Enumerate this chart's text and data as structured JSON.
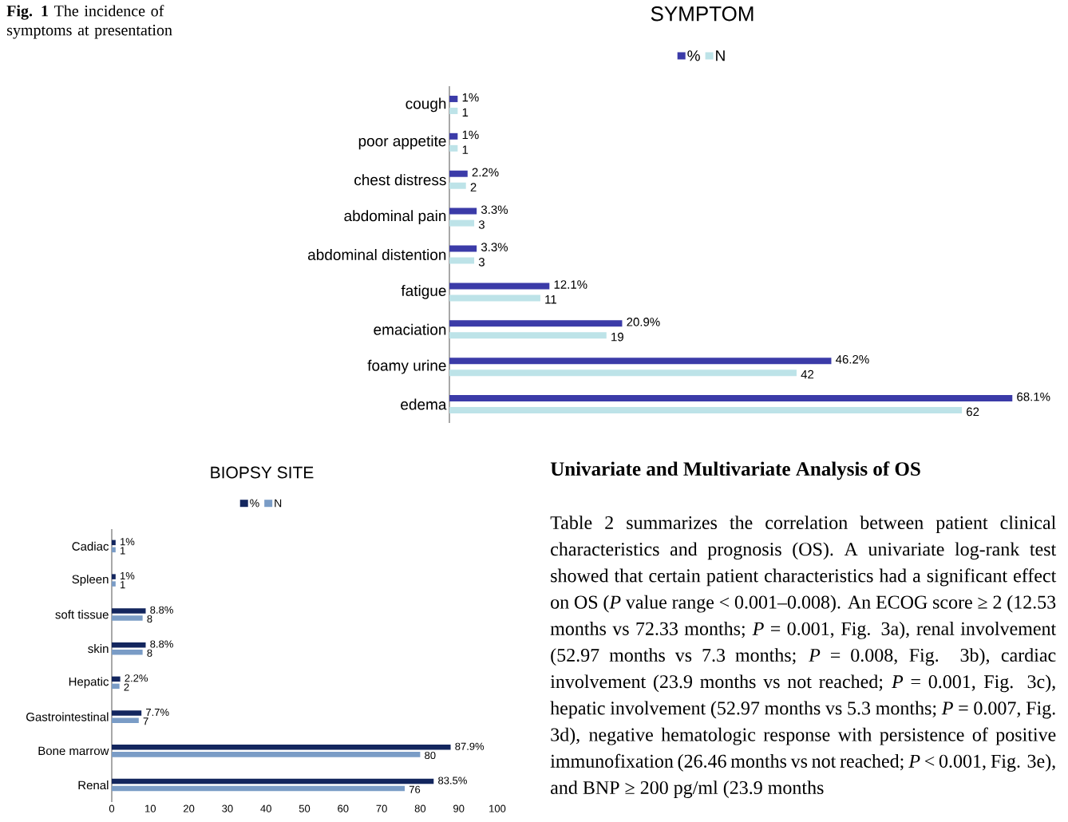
{
  "chart_data": [
    {
      "type": "bar",
      "orientation": "horizontal",
      "title": "SYMPTOM",
      "legend": "top",
      "categories": [
        "cough",
        "poor appetite",
        "chest distress",
        "abdominal pain",
        "abdominal distention",
        "fatigue",
        "emaciation",
        "foamy urine",
        "edema"
      ],
      "series": [
        {
          "name": "%",
          "color": "#3b3ba8",
          "values": [
            1,
            1,
            2.2,
            3.3,
            3.3,
            12.1,
            20.9,
            46.2,
            68.1
          ],
          "value_labels": [
            "1%",
            "1%",
            "2.2%",
            "3.3%",
            "3.3%",
            "12.1%",
            "20.9%",
            "46.2%",
            "68.1%"
          ]
        },
        {
          "name": "N",
          "color": "#bde3e8",
          "values": [
            1,
            1,
            2,
            3,
            3,
            11,
            19,
            42,
            62
          ],
          "value_labels": [
            "1",
            "1",
            "2",
            "3",
            "3",
            "11",
            "19",
            "42",
            "62"
          ]
        }
      ],
      "annotations": [
        "**Fig. 1** The incidence of symptoms at presentation"
      ]
    },
    {
      "type": "bar",
      "orientation": "horizontal",
      "title": "BIOPSY SITE",
      "legend": "top",
      "categories": [
        "Cadiac",
        "Spleen",
        "soft tissue",
        "skin",
        "Hepatic",
        "Gastrointestinal",
        "Bone marrow",
        "Renal"
      ],
      "series": [
        {
          "name": "%",
          "color": "#13265e",
          "values": [
            1,
            1,
            8.8,
            8.8,
            2.2,
            7.7,
            87.9,
            83.5
          ],
          "value_labels": [
            "1%",
            "1%",
            "8.8%",
            "8.8%",
            "2.2%",
            "7.7%",
            "87.9%",
            "83.5%"
          ]
        },
        {
          "name": "N",
          "color": "#7a9cc6",
          "values": [
            1,
            1,
            8,
            8,
            2,
            7,
            80,
            76
          ],
          "value_labels": [
            "1",
            "1",
            "8",
            "8",
            "2",
            "7",
            "80",
            "76"
          ]
        }
      ],
      "xlim": [
        0,
        100
      ],
      "xticks": [
        0,
        10,
        20,
        30,
        40,
        50,
        60,
        70,
        80,
        90,
        100
      ]
    },
    {
      "type": "other",
      "title": "Univariate and Multivariate Analysis of OS",
      "annotations": [
        "Table 2 summarizes the correlation between patient clinical characteristics and prognosis (OS). A univariate log-rank test showed that certain patient characteristics had a significant effect on OS (*P* value range < 0.001–0.008). An ECOG score ≥ 2 (12.53 months vs 72.33 months; *P* = 0.001, Fig. 3a), renal involvement (52.97 months vs 7.3 months; *P* = 0.008, Fig. 3b), cardiac involvement (23.9 months vs not reached; *P* = 0.001, Fig. 3c), hepatic involvement (52.97 months vs 5.3 months; *P* = 0.007, Fig. 3d), negative hematologic response with persistence of positive immunofixation (26.46 months vs not reached; *P* < 0.001, Fig. 3e), and BNP ≥ 200 pg/ml (23.9 months"
      ]
    }
  ]
}
